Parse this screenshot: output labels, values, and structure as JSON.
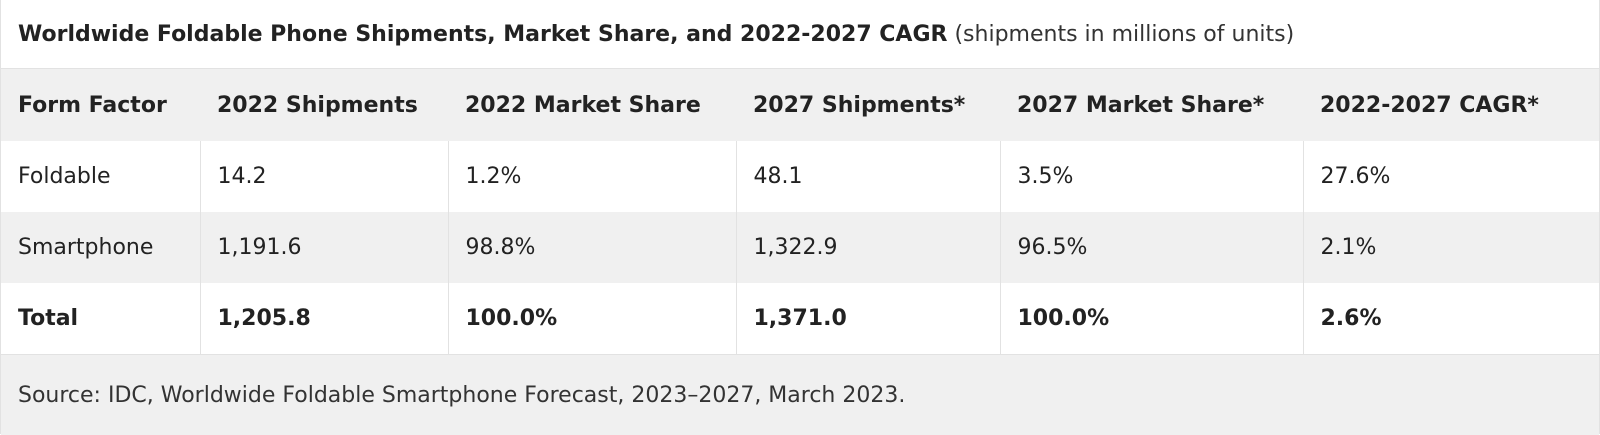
{
  "caption": {
    "title": "Worldwide Foldable Phone Shipments, Market Share, and 2022-2027 CAGR",
    "subtitle": "(shipments in millions of units)"
  },
  "table": {
    "headers": [
      "Form Factor",
      "2022 Shipments",
      "2022 Market Share",
      "2027 Shipments*",
      "2027 Market Share*",
      "2022-2027 CAGR*"
    ],
    "rows": [
      [
        "Foldable",
        "14.2",
        "1.2%",
        "48.1",
        "3.5%",
        "27.6%"
      ],
      [
        "Smartphone",
        "1,191.6",
        "98.8%",
        "1,322.9",
        "96.5%",
        "2.1%"
      ],
      [
        "Total",
        "1,205.8",
        "100.0%",
        "1,371.0",
        "100.0%",
        "2.6%"
      ]
    ]
  },
  "source": "Source: IDC, Worldwide Foldable Smartphone Forecast, 2023–2027, March 2023.",
  "colors": {
    "header_background": "#f0f0f0",
    "alt_row_background": "#f0f0f0",
    "text": "#222222"
  }
}
